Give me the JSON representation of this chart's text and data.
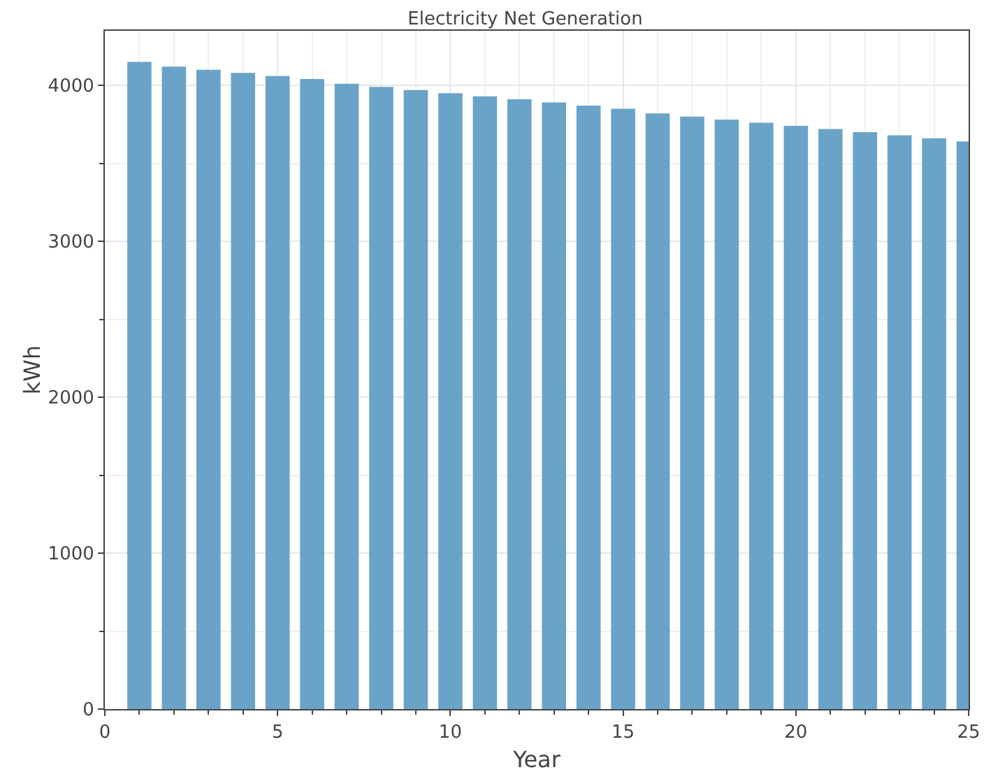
{
  "chart_data": {
    "type": "bar",
    "title": "Electricity Net Generation",
    "xlabel": "Year",
    "ylabel": "kWh",
    "x": [
      1,
      2,
      3,
      4,
      5,
      6,
      7,
      8,
      9,
      10,
      11,
      12,
      13,
      14,
      15,
      16,
      17,
      18,
      19,
      20,
      21,
      22,
      23,
      24,
      25
    ],
    "values": [
      4150,
      4120,
      4100,
      4080,
      4060,
      4040,
      4010,
      3990,
      3970,
      3950,
      3930,
      3910,
      3890,
      3870,
      3850,
      3820,
      3800,
      3780,
      3760,
      3740,
      3720,
      3700,
      3680,
      3660,
      3640
    ],
    "color": "#6aa3c8",
    "xlim": [
      0,
      25
    ],
    "xticks": [
      0,
      5,
      10,
      15,
      20,
      25
    ],
    "ylim": [
      0,
      4350
    ],
    "yticks": [
      0,
      1000,
      2000,
      3000,
      4000
    ],
    "grid": true
  }
}
